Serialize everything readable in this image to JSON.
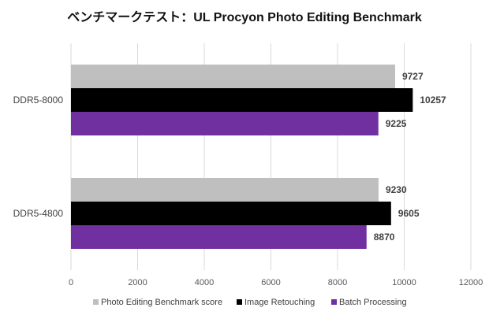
{
  "chart_data": {
    "type": "bar",
    "orientation": "horizontal",
    "title": "ベンチマークテスト：UL Procyon Photo Editing Benchmark",
    "categories": [
      "DDR5-8000",
      "DDR5-4800"
    ],
    "series": [
      {
        "name": "Photo Editing Benchmark score",
        "color": "#bfbfbf",
        "values": [
          9727,
          9230
        ]
      },
      {
        "name": "Image Retouching",
        "color": "#000000",
        "values": [
          10257,
          9605
        ]
      },
      {
        "name": "Batch Processing",
        "color": "#7030a0",
        "values": [
          9225,
          8870
        ]
      }
    ],
    "xlim": [
      0,
      12000
    ],
    "xticks": [
      0,
      2000,
      4000,
      6000,
      8000,
      10000,
      12000
    ],
    "grid": true,
    "legend": "bottom"
  }
}
